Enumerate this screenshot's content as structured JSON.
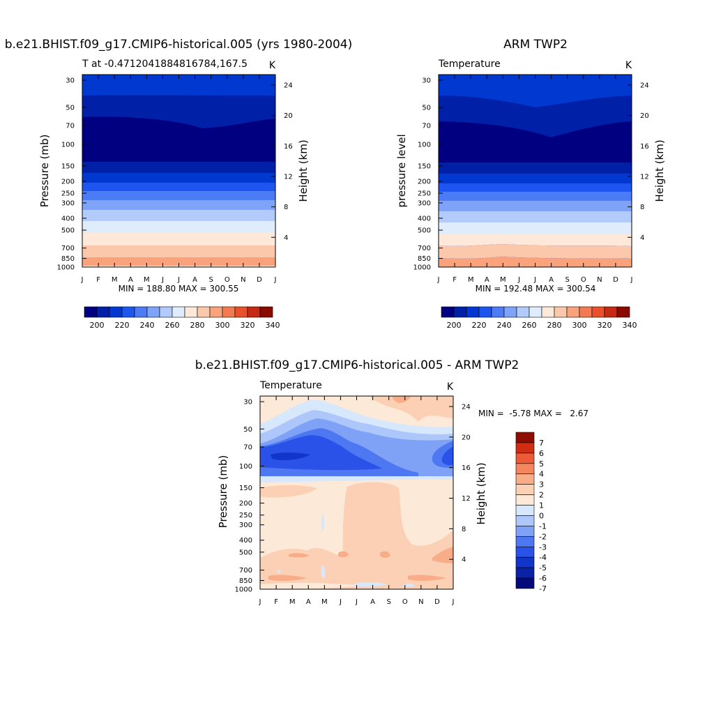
{
  "chart_data": [
    {
      "type": "heatmap",
      "title": "b.e21.BHIST.f09_g17.CMIP6-historical.005 (yrs 1980-2004)",
      "subtitle_left": "T at -0.4712041884816784,167.5",
      "subtitle_right": "K",
      "ylabel": "Pressure (mb)",
      "ylabel_right": "Height (km)",
      "x_ticks": [
        "J",
        "F",
        "M",
        "A",
        "M",
        "J",
        "J",
        "A",
        "S",
        "O",
        "N",
        "D",
        "J"
      ],
      "y_ticks": [
        "30",
        "50",
        "70",
        "100",
        "150",
        "200",
        "250",
        "300",
        "400",
        "500",
        "700",
        "850",
        "1000"
      ],
      "y_ticks_right": [
        "24",
        "20",
        "16",
        "12",
        "8",
        "4"
      ],
      "stats": "MIN = 188.80 MAX = 300.55",
      "min": 188.8,
      "max": 300.55,
      "colorbar_labels": [
        "200",
        "220",
        "240",
        "260",
        "280",
        "300",
        "320",
        "340"
      ]
    },
    {
      "type": "heatmap",
      "title": "ARM TWP2",
      "subtitle_left": "Temperature",
      "subtitle_right": "K",
      "ylabel": "pressure level",
      "ylabel_right": "Height (km)",
      "x_ticks": [
        "J",
        "F",
        "M",
        "A",
        "M",
        "J",
        "J",
        "A",
        "S",
        "O",
        "N",
        "D",
        "J"
      ],
      "y_ticks": [
        "30",
        "50",
        "70",
        "100",
        "150",
        "200",
        "250",
        "300",
        "400",
        "500",
        "700",
        "850",
        "1000"
      ],
      "y_ticks_right": [
        "24",
        "20",
        "16",
        "12",
        "8",
        "4"
      ],
      "stats": "MIN = 192.48 MAX = 300.54",
      "min": 192.48,
      "max": 300.54,
      "colorbar_labels": [
        "200",
        "220",
        "240",
        "260",
        "280",
        "300",
        "320",
        "340"
      ]
    },
    {
      "type": "heatmap",
      "title": "b.e21.BHIST.f09_g17.CMIP6-historical.005 - ARM TWP2",
      "subtitle_left": "Temperature",
      "subtitle_right": "K",
      "ylabel": "Pressure (mb)",
      "ylabel_right": "Height (km)",
      "x_ticks": [
        "J",
        "F",
        "M",
        "A",
        "M",
        "J",
        "J",
        "A",
        "S",
        "O",
        "N",
        "D",
        "J"
      ],
      "y_ticks": [
        "30",
        "50",
        "70",
        "100",
        "150",
        "200",
        "250",
        "300",
        "400",
        "500",
        "700",
        "850",
        "1000"
      ],
      "y_ticks_right": [
        "24",
        "20",
        "16",
        "12",
        "8",
        "4"
      ],
      "stats": "MIN =  -5.78 MAX =   2.67",
      "min": -5.78,
      "max": 2.67,
      "colorbar_labels": [
        "7",
        "6",
        "5",
        "4",
        "3",
        "2",
        "1",
        "0",
        "-1",
        "-2",
        "-3",
        "-4",
        "-5",
        "-6",
        "-7"
      ]
    }
  ],
  "palettes": {
    "absolute": [
      "#000080",
      "#0020a8",
      "#0038d0",
      "#1e55f0",
      "#4c7cf5",
      "#7ea3f8",
      "#b2cbfb",
      "#deecfc",
      "#fde8d9",
      "#fcc8ab",
      "#f9a27c",
      "#f47a51",
      "#e9502b",
      "#c72a14",
      "#8a0a00"
    ],
    "difference": [
      "#050a7a",
      "#0a22a8",
      "#1035c8",
      "#2a52e8",
      "#4e78f2",
      "#7fa2f6",
      "#adc7fa",
      "#d8e8fc",
      "#fde9d8",
      "#fcd0b5",
      "#f8ad88",
      "#f4865f",
      "#ec5a37",
      "#d02d14",
      "#8e0d00"
    ]
  }
}
